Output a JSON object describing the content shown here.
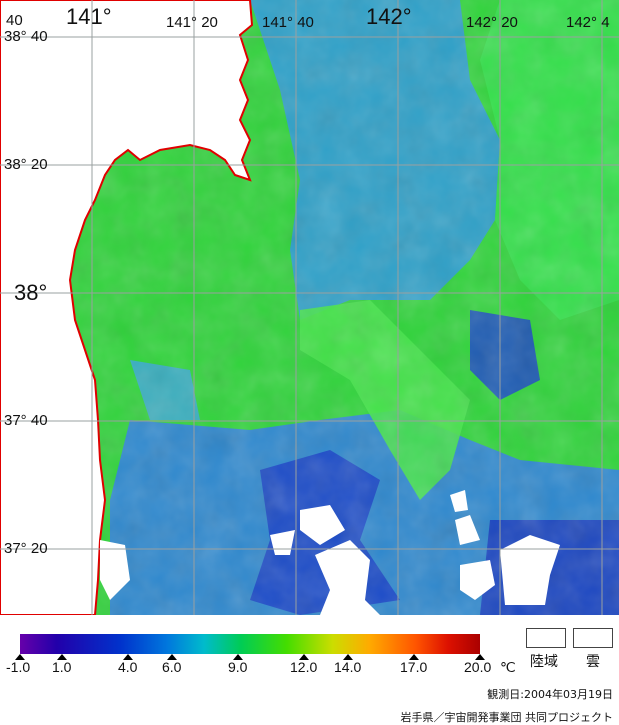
{
  "map": {
    "lon_labels": [
      "40",
      "141°",
      "141° 20",
      "141° 40",
      "142°",
      "142° 20",
      "142° 4"
    ],
    "lat_labels": [
      "38° 40",
      "38° 20",
      "38°",
      "37° 40",
      "37° 20"
    ],
    "colors": {
      "land": "#ffffff",
      "coast": "#e00000",
      "grid": "#9aa0a0",
      "sea_green": "#22dd22",
      "sea_blue": "#2266dd"
    }
  },
  "scale": {
    "ticks": [
      "-1.0",
      "1.0",
      "4.0",
      "6.0",
      "9.0",
      "12.0",
      "14.0",
      "17.0",
      "20.0"
    ],
    "unit": "℃",
    "gradient": [
      "#6600aa",
      "#2200aa",
      "#0033cc",
      "#0077dd",
      "#00bbcc",
      "#00cc55",
      "#44dd00",
      "#ccdd00",
      "#ffaa00",
      "#ff5500",
      "#dd1100",
      "#aa0000"
    ]
  },
  "legend": {
    "land_label": "陸域",
    "cloud_label": "雲"
  },
  "footer": {
    "observed": "観測日:2004年03月19日",
    "credit": "岩手県／宇宙開発事業団 共同プロジェクト"
  }
}
